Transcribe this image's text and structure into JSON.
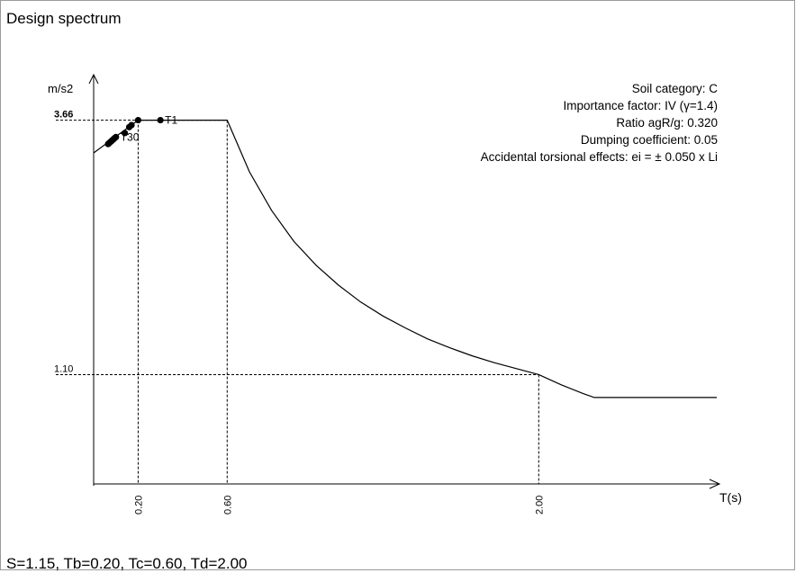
{
  "title": "Design spectrum",
  "footer": "S=1.15, Tb=0.20, Tc=0.60, Td=2.00",
  "chart_data": {
    "type": "line",
    "title": "Design spectrum",
    "ylabel": "m/s2",
    "xlabel": "T(s)",
    "xlim": [
      0,
      2.8
    ],
    "ylim": [
      0,
      4.0
    ],
    "y_ticks": [
      {
        "value": 3.66,
        "label": "3.66"
      },
      {
        "value": 1.1,
        "label": "1.10"
      }
    ],
    "x_ticks": [
      {
        "value": 0.2,
        "label": "0.20"
      },
      {
        "value": 0.6,
        "label": "0.60"
      },
      {
        "value": 2.0,
        "label": "2.00"
      }
    ],
    "info": [
      "Soil category: C",
      "Importance factor: IV (γ=1.4)",
      "Ratio agR/g: 0.320",
      "Dumping coefficient: 0.05",
      "Accidental torsional effects: ei = ± 0.050 x Li"
    ],
    "spectrum": {
      "x": [
        0,
        0.2,
        0.6,
        0.7,
        0.8,
        0.9,
        1.0,
        1.1,
        1.2,
        1.3,
        1.4,
        1.5,
        1.6,
        1.7,
        1.8,
        1.9,
        2.0,
        2.1,
        2.2,
        2.25,
        2.8
      ],
      "y": [
        3.33,
        3.66,
        3.66,
        3.14,
        2.75,
        2.44,
        2.2,
        2.0,
        1.83,
        1.69,
        1.57,
        1.46,
        1.37,
        1.29,
        1.22,
        1.16,
        1.1,
        0.998,
        0.909,
        0.87,
        0.87
      ]
    },
    "periods": {
      "x": [
        0.065,
        0.07,
        0.075,
        0.08,
        0.085,
        0.09,
        0.095,
        0.1,
        0.14,
        0.16,
        0.17,
        0.2,
        0.3
      ],
      "y": [
        3.42,
        3.43,
        3.44,
        3.45,
        3.46,
        3.47,
        3.48,
        3.49,
        3.53,
        3.59,
        3.61,
        3.66,
        3.66
      ],
      "labels": [
        {
          "index": 12,
          "text": "T1"
        },
        {
          "index": 7,
          "text": "T30"
        }
      ]
    }
  }
}
